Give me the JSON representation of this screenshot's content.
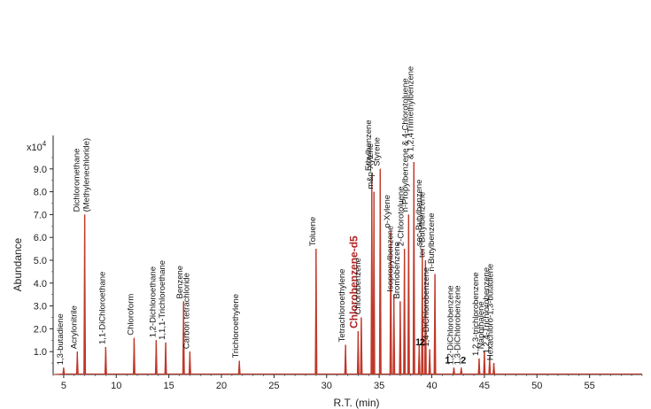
{
  "chart_data": {
    "type": "line",
    "xlabel": "R.T. (min)",
    "ylabel": "Abundance",
    "y_multiplier": "x10",
    "y_multiplier_exp": "4",
    "xlim": [
      4,
      60
    ],
    "ylim": [
      0,
      10
    ],
    "x_ticks": [
      {
        "value": 5,
        "label": "5"
      },
      {
        "value": 10,
        "label": "10"
      },
      {
        "value": 15,
        "label": "15"
      },
      {
        "value": 20,
        "label": "20"
      },
      {
        "value": 25,
        "label": "25"
      },
      {
        "value": 30,
        "label": "30"
      },
      {
        "value": 35,
        "label": "35"
      },
      {
        "value": 40,
        "label": "40"
      },
      {
        "value": 45,
        "label": "45"
      },
      {
        "value": 50,
        "label": "50"
      },
      {
        "value": 55,
        "label": "55"
      }
    ],
    "y_ticks": [
      {
        "value": 1,
        "label": "1.0"
      },
      {
        "value": 2,
        "label": "2.0"
      },
      {
        "value": 3,
        "label": "3.0"
      },
      {
        "value": 4,
        "label": "4.0"
      },
      {
        "value": 5,
        "label": "5.0"
      },
      {
        "value": 6,
        "label": "6.0"
      },
      {
        "value": 7,
        "label": "7.0"
      },
      {
        "value": 8,
        "label": "8.0"
      },
      {
        "value": 9,
        "label": "9.0"
      }
    ],
    "line_color": "#c0392b",
    "peaks": [
      {
        "x": 5.0,
        "y": 0.3,
        "label": "1,3-butadiene"
      },
      {
        "x": 6.3,
        "y": 1.0,
        "label": "Acrylonitrile"
      },
      {
        "x": 7.0,
        "y": 7.0,
        "label": "Dichloromethane\n(Methylenechloride)"
      },
      {
        "x": 9.0,
        "y": 1.2,
        "label": "1,1-DiChloroethane"
      },
      {
        "x": 11.7,
        "y": 1.6,
        "label": "Chloroform"
      },
      {
        "x": 13.8,
        "y": 1.5,
        "label": "1,2-Dichloroethane"
      },
      {
        "x": 14.7,
        "y": 1.4,
        "label": "1,1,1-Trichloroethane"
      },
      {
        "x": 16.4,
        "y": 3.2,
        "label": "Benzene"
      },
      {
        "x": 17.0,
        "y": 1.0,
        "label": "Carbon tetrachloride"
      },
      {
        "x": 21.7,
        "y": 0.6,
        "label": "Trichloroethylene"
      },
      {
        "x": 29.0,
        "y": 5.5,
        "label": "Toluene"
      },
      {
        "x": 31.8,
        "y": 1.3,
        "label": "Tetrachloroethylene"
      },
      {
        "x": 33.0,
        "y": 1.9,
        "label": "Chlorobenzene-d5",
        "bold": true
      },
      {
        "x": 33.3,
        "y": 2.5,
        "label": "Chlorobenzene"
      },
      {
        "x": 34.3,
        "y": 8.8,
        "label": "Ethylbenzene"
      },
      {
        "x": 34.5,
        "y": 8.0,
        "label": "m&p-Xylene"
      },
      {
        "x": 35.1,
        "y": 9.0,
        "label": "Styrene"
      },
      {
        "x": 36.1,
        "y": 6.3,
        "label": "o-Xylene"
      },
      {
        "x": 36.4,
        "y": 3.5,
        "label": "Isopropylbenzene"
      },
      {
        "x": 37.0,
        "y": 3.2,
        "label": "Bromobenzene"
      },
      {
        "x": 37.4,
        "y": 5.5,
        "label": "2-Chlorotoluene"
      },
      {
        "x": 37.8,
        "y": 7.0,
        "label": "n-Propylbenzene & 4-Chlorotoluene"
      },
      {
        "x": 38.3,
        "y": 9.3,
        "label": "& 1,2,4Trimethylbenzene"
      },
      {
        "x": 38.8,
        "y": 1.3,
        "label": ""
      },
      {
        "x": 39.1,
        "y": 5.5,
        "label": "sec-Butylbenzene"
      },
      {
        "x": 39.4,
        "y": 5.0,
        "label": "tert-Butylbenzene"
      },
      {
        "x": 39.8,
        "y": 1.1,
        "label": "1,4-DiChlorobenzene"
      },
      {
        "x": 40.3,
        "y": 4.4,
        "label": "n-Butylbenzene"
      },
      {
        "x": 42.1,
        "y": 0.3,
        "label": "1,2-DiChlorobenzene"
      },
      {
        "x": 42.8,
        "y": 0.3,
        "label": "1,3-DiChlorobenzene"
      },
      {
        "x": 44.5,
        "y": 0.7,
        "label": "1,2,3-trichlorobenzene"
      },
      {
        "x": 45.0,
        "y": 1.0,
        "label": "Naphthalene"
      },
      {
        "x": 45.5,
        "y": 0.8,
        "label": "1,2,4-Trichlorobenzene"
      },
      {
        "x": 45.9,
        "y": 0.5,
        "label": "Hexachloro-1,3-butadiene"
      }
    ],
    "markers": [
      {
        "x": 38.7,
        "y": 1.2,
        "label": "1"
      },
      {
        "x": 39.1,
        "y": 1.2,
        "label": "2"
      },
      {
        "x": 41.5,
        "y": 0.4,
        "label": "1"
      },
      {
        "x": 43.0,
        "y": 0.4,
        "label": "2"
      }
    ]
  }
}
